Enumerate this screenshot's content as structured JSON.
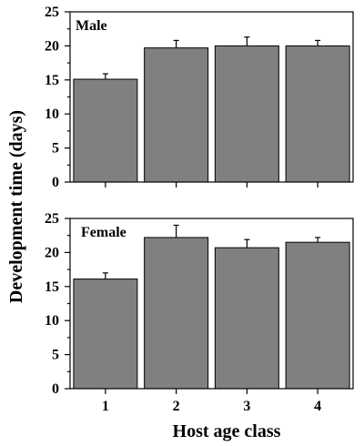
{
  "chart_data": [
    {
      "type": "bar",
      "panel_label": "Male",
      "categories": [
        "1",
        "2",
        "3",
        "4"
      ],
      "values": [
        15.1,
        19.7,
        20.0,
        20.0
      ],
      "errors": [
        0.8,
        1.1,
        1.3,
        0.8
      ],
      "ylim": [
        0,
        25
      ],
      "yticks": [
        0,
        5,
        10,
        15,
        20,
        25
      ],
      "ytick_labels": [
        "0",
        "5",
        "10",
        "15",
        "20",
        "25"
      ],
      "bar_color": "#808080",
      "show_xtick_labels": false
    },
    {
      "type": "bar",
      "panel_label": "Female",
      "categories": [
        "1",
        "2",
        "3",
        "4"
      ],
      "values": [
        16.1,
        22.2,
        20.7,
        21.5
      ],
      "errors": [
        0.9,
        1.8,
        1.2,
        0.7
      ],
      "ylim": [
        0,
        25
      ],
      "yticks": [
        0,
        5,
        10,
        15,
        20,
        25
      ],
      "ytick_labels": [
        "0",
        "5",
        "10",
        "15",
        "20",
        "25"
      ],
      "bar_color": "#808080",
      "show_xtick_labels": true
    }
  ],
  "ylabel": "Development time (days)",
  "xlabel": "Host age class"
}
